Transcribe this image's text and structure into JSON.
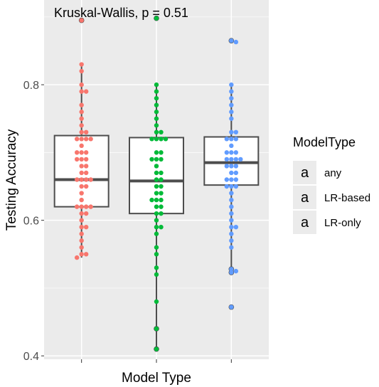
{
  "chart_data": {
    "type": "boxplot",
    "annotation": "Kruskal-Wallis, p = 0.51",
    "xlabel": "Model Type",
    "ylabel": "Testing Accuracy",
    "categories": [
      "any",
      "LR-based",
      "LR-only"
    ],
    "y_ticks": [
      0.4,
      0.6,
      0.8
    ],
    "y_tick_labels": [
      "0.4",
      "0.6",
      "0.8"
    ],
    "ylim": [
      0.395,
      0.925
    ],
    "grid": true,
    "legend": {
      "title": "ModelType",
      "placement": "right",
      "entries": [
        "any",
        "LR-based",
        "LR-only"
      ],
      "key_glyph": "a"
    },
    "colors": {
      "any": "#F8766D",
      "LR-based": "#00BA38",
      "LR-only": "#619CFF",
      "panel": "#EBEBEB",
      "grid": "#FFFFFF",
      "box_line": "#4D4D4D"
    },
    "boxes": [
      {
        "name": "any",
        "whisker_low": 0.545,
        "q1": 0.62,
        "median": 0.66,
        "q3": 0.725,
        "whisker_high": 0.83,
        "outliers": [
          0.895
        ]
      },
      {
        "name": "LR-based",
        "whisker_low": 0.41,
        "q1": 0.61,
        "median": 0.658,
        "q3": 0.722,
        "whisker_high": 0.8,
        "outliers": [
          0.898,
          0.44,
          0.41
        ]
      },
      {
        "name": "LR-only",
        "whisker_low": 0.52,
        "q1": 0.652,
        "median": 0.685,
        "q3": 0.723,
        "whisker_high": 0.8,
        "outliers": [
          0.865,
          0.528,
          0.523,
          0.472
        ]
      }
    ],
    "series": [
      {
        "name": "any",
        "values": [
          0.895,
          0.83,
          0.82,
          0.8,
          0.79,
          0.79,
          0.77,
          0.76,
          0.75,
          0.74,
          0.73,
          0.73,
          0.72,
          0.72,
          0.72,
          0.72,
          0.71,
          0.7,
          0.7,
          0.7,
          0.69,
          0.69,
          0.69,
          0.68,
          0.68,
          0.67,
          0.67,
          0.66,
          0.66,
          0.66,
          0.66,
          0.65,
          0.65,
          0.64,
          0.63,
          0.62,
          0.62,
          0.62,
          0.62,
          0.61,
          0.61,
          0.6,
          0.59,
          0.59,
          0.58,
          0.57,
          0.56,
          0.55,
          0.55,
          0.545
        ]
      },
      {
        "name": "LR-based",
        "values": [
          0.898,
          0.8,
          0.79,
          0.78,
          0.77,
          0.76,
          0.75,
          0.74,
          0.73,
          0.73,
          0.72,
          0.72,
          0.72,
          0.72,
          0.7,
          0.7,
          0.69,
          0.69,
          0.69,
          0.68,
          0.67,
          0.67,
          0.66,
          0.66,
          0.65,
          0.65,
          0.64,
          0.64,
          0.63,
          0.63,
          0.63,
          0.62,
          0.62,
          0.61,
          0.61,
          0.6,
          0.59,
          0.59,
          0.58,
          0.56,
          0.55,
          0.53,
          0.52,
          0.48,
          0.44,
          0.41
        ]
      },
      {
        "name": "LR-only",
        "values": [
          0.865,
          0.863,
          0.8,
          0.79,
          0.78,
          0.77,
          0.76,
          0.75,
          0.73,
          0.73,
          0.72,
          0.72,
          0.72,
          0.71,
          0.7,
          0.7,
          0.7,
          0.69,
          0.69,
          0.69,
          0.69,
          0.68,
          0.68,
          0.68,
          0.67,
          0.67,
          0.66,
          0.66,
          0.66,
          0.65,
          0.65,
          0.65,
          0.64,
          0.63,
          0.62,
          0.61,
          0.6,
          0.59,
          0.59,
          0.58,
          0.57,
          0.56,
          0.528,
          0.525,
          0.523,
          0.472
        ]
      }
    ]
  }
}
